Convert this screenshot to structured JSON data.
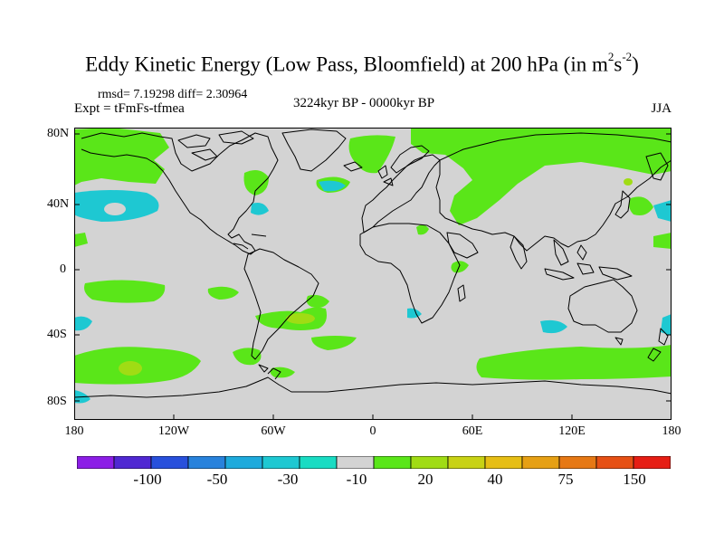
{
  "title": {
    "main": "Eddy Kinetic Energy (Low Pass, Bloomfield) at 200 hPa (in m",
    "sup1": "2",
    "mid": "s",
    "sup2": "-2",
    "end": ")"
  },
  "stats": "rmsd= 7.19298 diff= 2.30964",
  "expt": "Expt = tFmFs-tfmea",
  "period": "3224kyr BP - 0000kyr BP",
  "season": "JJA",
  "map": {
    "lat_labels": [
      "80N",
      "40N",
      "0",
      "40S",
      "80S"
    ],
    "lon_labels": [
      "180",
      "120W",
      "60W",
      "0",
      "60E",
      "120E",
      "180"
    ],
    "background_color": "#d3d3d3",
    "coastline_color": "#000000"
  },
  "colorbar": {
    "labels": [
      "-100",
      "-50",
      "-30",
      "-10",
      "20",
      "40",
      "75",
      "150"
    ],
    "colors": [
      "#8c1ee6",
      "#5028d2",
      "#2850dc",
      "#2882dc",
      "#1eaadc",
      "#1ec8d2",
      "#19dcc3",
      "#d3d3d3",
      "#5ae619",
      "#a0dc14",
      "#c8d214",
      "#e6be14",
      "#e6a014",
      "#e67814",
      "#e65014",
      "#e61e14"
    ]
  },
  "fields": {
    "positive_color": "#5ae619",
    "strong_positive_color": "#a0dc14",
    "negative_color": "#1ec8d2"
  }
}
